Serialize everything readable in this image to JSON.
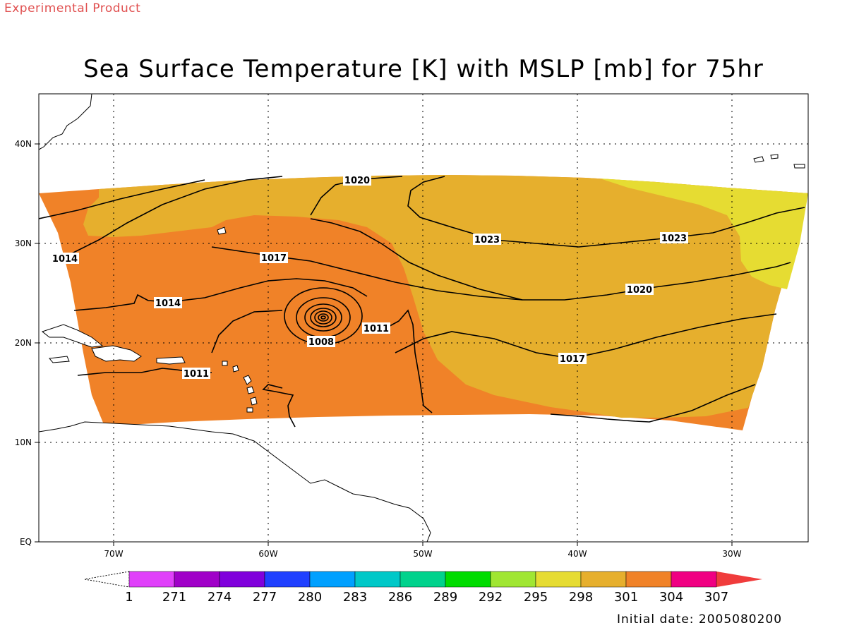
{
  "header": {
    "tag": "Experimental Product",
    "title": "Sea Surface Temperature [K] with MSLP [mb] for 75hr"
  },
  "footer": {
    "initial_date": "Initial date: 2005080200"
  },
  "map": {
    "lon_labels": [
      "70W",
      "60W",
      "50W",
      "40W",
      "30W"
    ],
    "lat_labels": [
      "EQ",
      "10N",
      "20N",
      "30N",
      "40N"
    ],
    "isobar_labels": [
      "1020",
      "1023",
      "1023",
      "1014",
      "1017",
      "1014",
      "1020",
      "1011",
      "1008",
      "1017",
      "1011"
    ]
  },
  "colorbar": {
    "labels": [
      "1",
      "271",
      "274",
      "277",
      "280",
      "283",
      "286",
      "289",
      "292",
      "295",
      "298",
      "301",
      "304",
      "307"
    ],
    "colors": [
      "#e040fa",
      "#a000c8",
      "#8000dc",
      "#2040ff",
      "#00a0ff",
      "#00c8c8",
      "#00d28c",
      "#00dc00",
      "#a0e632",
      "#e6dc32",
      "#e6af2d",
      "#f08228",
      "#f00082",
      "#f03c3c"
    ]
  },
  "colors": {
    "sst_298": "#e6dc32",
    "sst_301": "#e6af2d",
    "sst_304": "#f08228"
  }
}
